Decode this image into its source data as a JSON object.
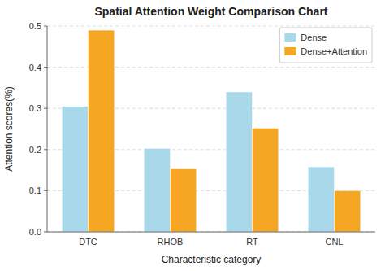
{
  "chart_data": {
    "type": "bar",
    "title": "Spatial Attention Weight Comparison Chart",
    "xlabel": "Characteristic category",
    "ylabel": "Attention scores(%)",
    "categories": [
      "DTC",
      "RHOB",
      "RT",
      "CNL"
    ],
    "series": [
      {
        "name": "Dense",
        "color": "#a8d8ea",
        "values": [
          0.305,
          0.203,
          0.34,
          0.158
        ]
      },
      {
        "name": "Dense+Attention",
        "color": "#f5a623",
        "values": [
          0.49,
          0.153,
          0.252,
          0.1
        ]
      }
    ],
    "ylim": [
      0.0,
      0.5
    ],
    "yticks": [
      {
        "value": 0.0,
        "label": "0.0"
      },
      0.1,
      0.2,
      0.3,
      0.4,
      0.5
    ],
    "grid": true,
    "legend": "upper right"
  }
}
